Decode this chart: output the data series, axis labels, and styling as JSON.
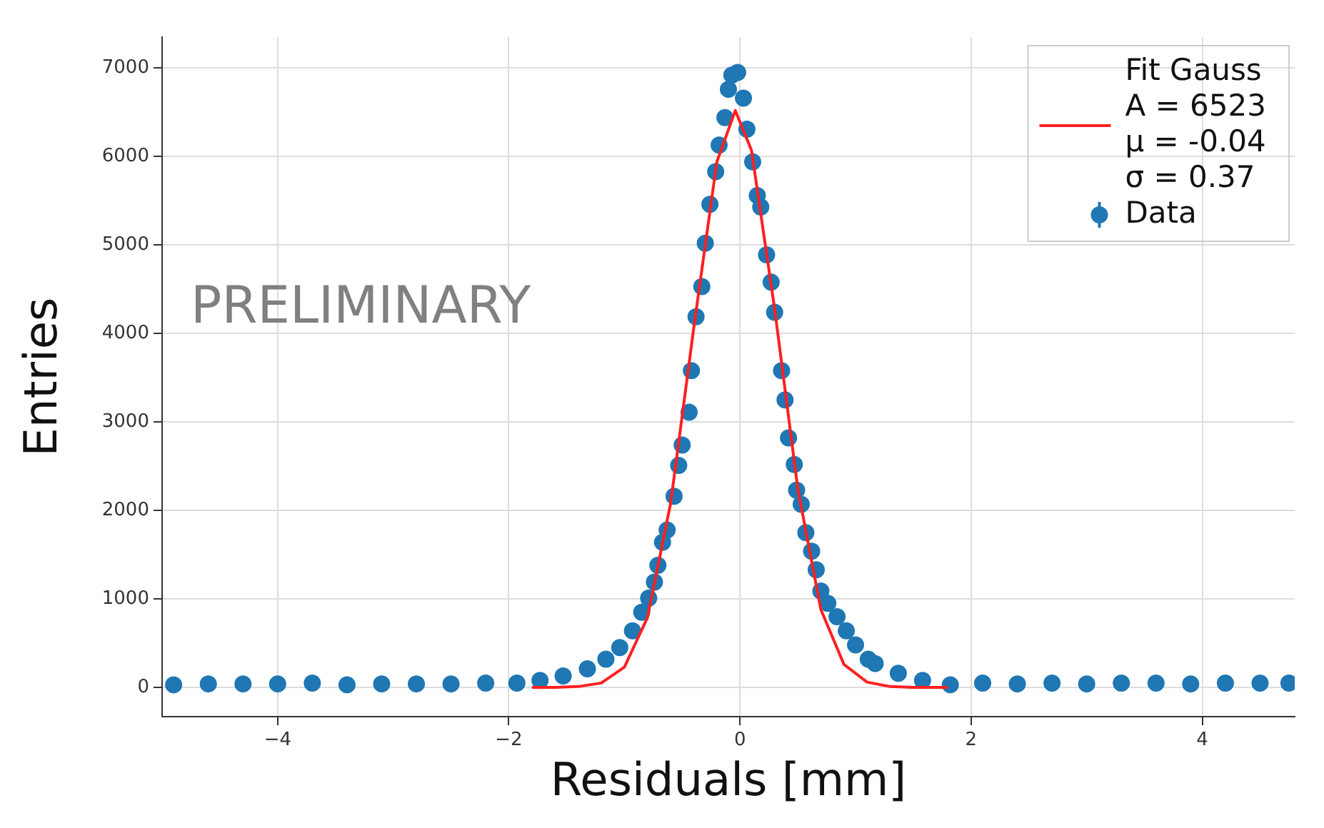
{
  "chart_data": {
    "type": "scatter",
    "xlabel": "Residuals [mm]",
    "ylabel": "Entries",
    "annotations": [
      "PRELIMINARY"
    ],
    "xlim": [
      -5,
      4.8
    ],
    "xticks": [
      {
        "value": -4,
        "label": "−4"
      },
      {
        "value": -2,
        "label": "−2"
      },
      0,
      2,
      4
    ],
    "ylim": [
      -330,
      7350
    ],
    "yticks": [
      0,
      1000,
      2000,
      3000,
      4000,
      5000,
      6000,
      7000
    ],
    "grid": true,
    "legend": "top right",
    "series": [
      {
        "name": "Fit Gauss\nA = 6523\nμ = -0.04\nσ = 0.37",
        "type": "line",
        "color": "#ff2020",
        "marker": "none",
        "line_style": "solid",
        "x": [
          -1.8,
          -1.6,
          -1.4,
          -1.2,
          -1.0,
          -0.8,
          -0.6,
          -0.4,
          -0.2,
          -0.04,
          0.1,
          0.3,
          0.5,
          0.7,
          0.9,
          1.1,
          1.3,
          1.5,
          1.8
        ],
        "values": [
          0,
          0,
          10,
          50,
          230,
          790,
          2080,
          4060,
          5940,
          6520,
          6070,
          4280,
          2250,
          880,
          260,
          60,
          10,
          0,
          0
        ]
      },
      {
        "name": "Data",
        "type": "scatter",
        "color": "#1f77b4",
        "marker": "circle",
        "x": [
          -4.9,
          -4.6,
          -4.3,
          -4.0,
          -3.7,
          -3.4,
          -3.1,
          -2.8,
          -2.5,
          -2.2,
          -1.93,
          -1.73,
          -1.53,
          -1.32,
          -1.16,
          -1.04,
          -0.93,
          -0.85,
          -0.79,
          -0.74,
          -0.71,
          -0.67,
          -0.63,
          -0.57,
          -0.53,
          -0.5,
          -0.44,
          -0.42,
          -0.38,
          -0.33,
          -0.3,
          -0.26,
          -0.21,
          -0.18,
          -0.13,
          -0.1,
          -0.07,
          -0.02,
          0.03,
          0.06,
          0.11,
          0.15,
          0.18,
          0.23,
          0.27,
          0.3,
          0.36,
          0.39,
          0.42,
          0.47,
          0.49,
          0.53,
          0.57,
          0.62,
          0.66,
          0.7,
          0.76,
          0.84,
          0.92,
          1.0,
          1.11,
          1.17,
          1.37,
          1.58,
          1.82,
          2.1,
          2.4,
          2.7,
          3.0,
          3.3,
          3.6,
          3.9,
          4.2,
          4.5,
          4.75
        ],
        "values": [
          30,
          40,
          40,
          40,
          50,
          30,
          40,
          40,
          40,
          50,
          50,
          80,
          130,
          210,
          320,
          450,
          640,
          850,
          1010,
          1190,
          1380,
          1640,
          1780,
          2160,
          2510,
          2740,
          3110,
          3580,
          4190,
          4530,
          5020,
          5460,
          5830,
          6130,
          6440,
          6760,
          6920,
          6950,
          6660,
          6310,
          5940,
          5560,
          5430,
          4890,
          4580,
          4240,
          3580,
          3250,
          2820,
          2520,
          2230,
          2070,
          1750,
          1540,
          1330,
          1090,
          950,
          800,
          640,
          480,
          320,
          270,
          160,
          80,
          30,
          50,
          40,
          50,
          40,
          50,
          50,
          40,
          50,
          50,
          50
        ]
      }
    ]
  }
}
